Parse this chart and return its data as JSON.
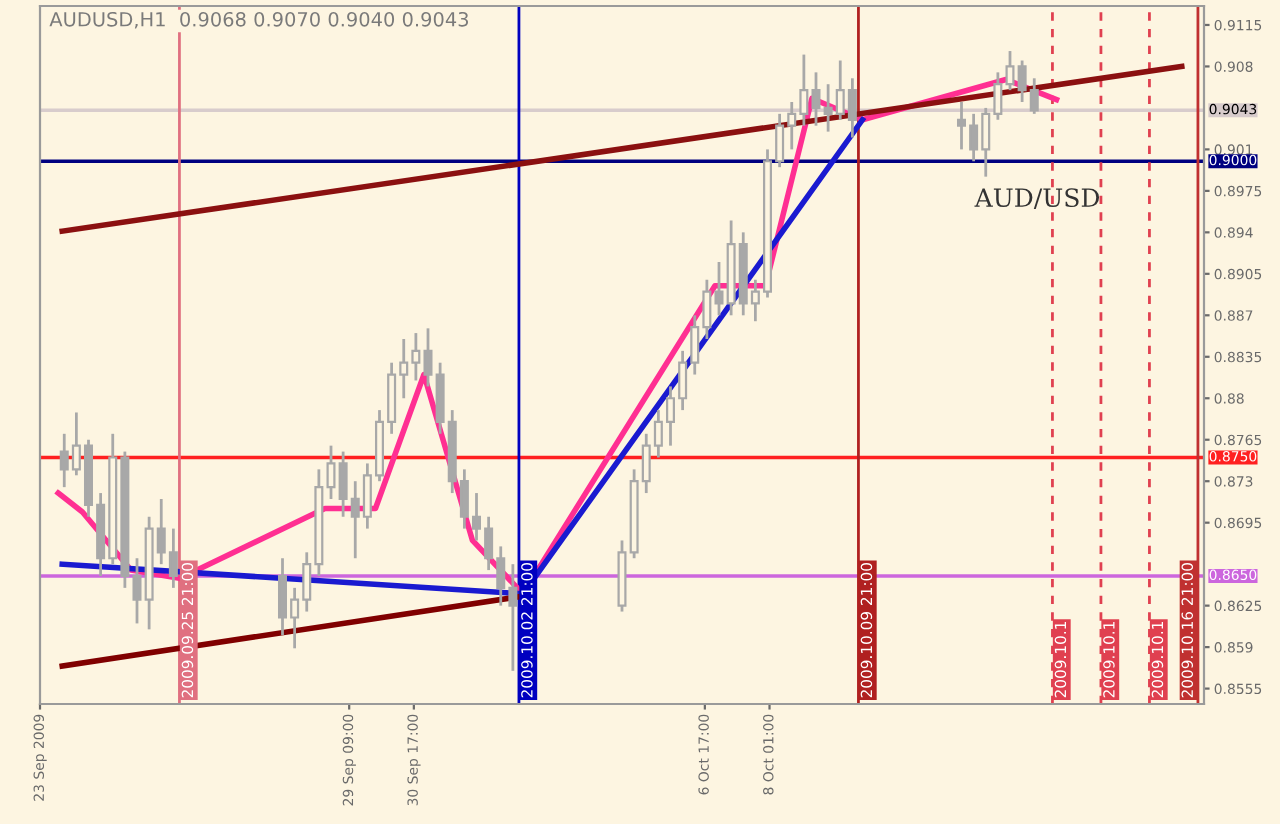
{
  "chart_data": {
    "type": "candlestick",
    "title": "AUDUSD,H1  0.9068 0.9070 0.9040 0.9043",
    "x": [
      "2009-09-23T12:00",
      "2009-09-23T18:00",
      "2009-09-24T00:00",
      "2009-09-24T06:00",
      "2009-09-24T12:00",
      "2009-09-24T18:00",
      "2009-09-25T00:00",
      "2009-09-25T06:00",
      "2009-09-25T12:00",
      "2009-09-25T18:00",
      "2009-09-28T00:00",
      "2009-09-28T06:00",
      "2009-09-28T12:00",
      "2009-09-28T18:00",
      "2009-09-29T00:00",
      "2009-09-29T06:00",
      "2009-09-29T12:00",
      "2009-09-29T18:00",
      "2009-09-30T00:00",
      "2009-09-30T06:00",
      "2009-09-30T12:00",
      "2009-09-30T18:00",
      "2009-10-01T00:00",
      "2009-10-01T06:00",
      "2009-10-01T12:00",
      "2009-10-01T18:00",
      "2009-10-02T00:00",
      "2009-10-02T06:00",
      "2009-10-02T12:00",
      "2009-10-02T18:00",
      "2009-10-05T00:00",
      "2009-10-05T06:00",
      "2009-10-05T12:00",
      "2009-10-05T18:00",
      "2009-10-06T00:00",
      "2009-10-06T06:00",
      "2009-10-06T12:00",
      "2009-10-06T18:00",
      "2009-10-07T00:00",
      "2009-10-07T06:00",
      "2009-10-07T12:00",
      "2009-10-07T18:00",
      "2009-10-08T00:00",
      "2009-10-08T06:00",
      "2009-10-08T12:00",
      "2009-10-08T18:00",
      "2009-10-09T00:00",
      "2009-10-09T06:00",
      "2009-10-09T12:00",
      "2009-10-09T18:00",
      "2009-10-12T00:00",
      "2009-10-12T06:00",
      "2009-10-12T12:00",
      "2009-10-12T18:00",
      "2009-10-13T00:00",
      "2009-10-13T06:00",
      "2009-10-13T12:00"
    ],
    "ohlc": [
      [
        0.8755,
        0.877,
        0.8725,
        0.874
      ],
      [
        0.874,
        0.8788,
        0.8735,
        0.876
      ],
      [
        0.876,
        0.8765,
        0.87,
        0.871
      ],
      [
        0.871,
        0.872,
        0.865,
        0.8665
      ],
      [
        0.8665,
        0.877,
        0.866,
        0.875
      ],
      [
        0.875,
        0.8755,
        0.864,
        0.865
      ],
      [
        0.865,
        0.8665,
        0.861,
        0.863
      ],
      [
        0.863,
        0.87,
        0.8605,
        0.869
      ],
      [
        0.869,
        0.8715,
        0.866,
        0.867
      ],
      [
        0.867,
        0.869,
        0.864,
        0.865
      ],
      [
        0.865,
        0.8665,
        0.86,
        0.8615
      ],
      [
        0.8615,
        0.864,
        0.8589,
        0.863
      ],
      [
        0.863,
        0.867,
        0.862,
        0.866
      ],
      [
        0.866,
        0.874,
        0.865,
        0.8725
      ],
      [
        0.8725,
        0.876,
        0.8715,
        0.8745
      ],
      [
        0.8745,
        0.8755,
        0.87,
        0.8715
      ],
      [
        0.8715,
        0.873,
        0.8665,
        0.87
      ],
      [
        0.87,
        0.8745,
        0.869,
        0.8735
      ],
      [
        0.8735,
        0.879,
        0.873,
        0.878
      ],
      [
        0.878,
        0.883,
        0.877,
        0.882
      ],
      [
        0.882,
        0.885,
        0.88,
        0.883
      ],
      [
        0.883,
        0.8855,
        0.8815,
        0.884
      ],
      [
        0.884,
        0.8859,
        0.881,
        0.882
      ],
      [
        0.882,
        0.883,
        0.877,
        0.878
      ],
      [
        0.878,
        0.879,
        0.872,
        0.873
      ],
      [
        0.873,
        0.874,
        0.869,
        0.87
      ],
      [
        0.87,
        0.872,
        0.868,
        0.869
      ],
      [
        0.869,
        0.87,
        0.8655,
        0.8665
      ],
      [
        0.8665,
        0.8675,
        0.8625,
        0.864
      ],
      [
        0.864,
        0.866,
        0.857,
        0.8625
      ],
      [
        0.8625,
        0.868,
        0.862,
        0.867
      ],
      [
        0.867,
        0.874,
        0.8665,
        0.873
      ],
      [
        0.873,
        0.877,
        0.872,
        0.876
      ],
      [
        0.876,
        0.879,
        0.875,
        0.878
      ],
      [
        0.878,
        0.881,
        0.876,
        0.88
      ],
      [
        0.88,
        0.884,
        0.879,
        0.883
      ],
      [
        0.883,
        0.887,
        0.882,
        0.886
      ],
      [
        0.886,
        0.89,
        0.885,
        0.889
      ],
      [
        0.889,
        0.8915,
        0.887,
        0.888
      ],
      [
        0.888,
        0.895,
        0.887,
        0.893
      ],
      [
        0.893,
        0.894,
        0.887,
        0.888
      ],
      [
        0.888,
        0.89,
        0.8865,
        0.889
      ],
      [
        0.889,
        0.901,
        0.8885,
        0.9
      ],
      [
        0.9,
        0.904,
        0.8995,
        0.903
      ],
      [
        0.903,
        0.905,
        0.901,
        0.904
      ],
      [
        0.904,
        0.909,
        0.903,
        0.906
      ],
      [
        0.906,
        0.9075,
        0.903,
        0.9045
      ],
      [
        0.9045,
        0.9065,
        0.9025,
        0.904
      ],
      [
        0.904,
        0.9085,
        0.9035,
        0.906
      ],
      [
        0.906,
        0.907,
        0.902,
        0.9035
      ],
      [
        0.9035,
        0.905,
        0.901,
        0.903
      ],
      [
        0.903,
        0.904,
        0.9,
        0.901
      ],
      [
        0.901,
        0.9045,
        0.8987,
        0.904
      ],
      [
        0.904,
        0.9075,
        0.9035,
        0.9065
      ],
      [
        0.9065,
        0.9093,
        0.906,
        0.908
      ],
      [
        0.908,
        0.9085,
        0.905,
        0.906
      ],
      [
        0.906,
        0.907,
        0.904,
        0.9043
      ]
    ],
    "color": "#a8a8a8",
    "series": [
      {
        "type": "line",
        "color": "#ff2f92",
        "x": [
          "2009-09-23T09:00",
          "2009-09-23T21:00",
          "2009-09-24T21:00",
          "2009-09-25T21:00",
          "2009-09-28T21:00",
          "2009-09-29T22:00",
          "2009-09-30T22:00",
          "2009-10-01T22:00",
          "2009-10-02T23:00",
          "2009-10-06T22:00",
          "2009-10-07T23:00",
          "2009-10-08T22:00",
          "2009-10-09T23:00",
          "2009-10-12T22:00",
          "2009-10-13T23:00"
        ],
        "values": [
          0.872,
          0.8704,
          0.8655,
          0.8648,
          0.8707,
          0.8707,
          0.882,
          0.868,
          0.8635,
          0.8895,
          0.8895,
          0.9053,
          0.9035,
          0.9069,
          0.9052
        ]
      },
      {
        "type": "line",
        "color": "#1a1ad0",
        "x": [
          "2009-09-23T11:00",
          "2009-10-02T23:00"
        ],
        "values": [
          0.866,
          0.8635
        ]
      },
      {
        "type": "line",
        "color": "#1a1ad0",
        "x": [
          "2009-10-02T23:00",
          "2009-10-09T23:00"
        ],
        "values": [
          0.8635,
          0.9035
        ]
      },
      {
        "type": "line",
        "color": "#800000",
        "x": [
          "2009-09-23T11:00",
          "2009-10-02T23:00"
        ],
        "values": [
          0.8574,
          0.8633
        ]
      },
      {
        "type": "line",
        "color": "#8b1010",
        "x": [
          "2009-09-23T11:00",
          "2009-10-16T13:00"
        ],
        "values": [
          0.8941,
          0.908
        ]
      }
    ],
    "xlim": [
      "2009-09-23",
      "2009-10-17"
    ],
    "ylim": [
      0.8542,
      0.9131
    ],
    "xticks": [
      {
        "value": "2009-09-23",
        "label": "23 Sep 2009"
      },
      {
        "value": "2009-09-29T09:00",
        "label": "29 Sep 09:00"
      },
      {
        "value": "2009-09-30T17:00",
        "label": "30 Sep 17:00"
      },
      {
        "value": "2009-10-06T17:00",
        "label": "6 Oct 17:00"
      },
      {
        "value": "2009-10-08T01:00",
        "label": "8 Oct 01:00"
      }
    ],
    "yticks": [
      0.9115,
      0.908,
      0.901,
      0.8975,
      0.894,
      0.8905,
      0.887,
      0.8835,
      0.88,
      0.8765,
      0.873,
      0.8695,
      0.8625,
      0.859,
      0.8555
    ],
    "ref_lines": [
      {
        "axis": "y",
        "value": 0.9043,
        "label": "0.9043",
        "color": "#d8cccc",
        "line_style": "solid"
      },
      {
        "axis": "y",
        "value": 0.9,
        "label": "0.9000",
        "color": "#000080",
        "line_style": "solid"
      },
      {
        "axis": "y",
        "value": 0.875,
        "label": "0.8750",
        "color": "#ff2020",
        "line_style": "solid"
      },
      {
        "axis": "y",
        "value": 0.865,
        "label": "0.8650",
        "color": "#cc66dd",
        "line_style": "solid"
      },
      {
        "axis": "x",
        "value": "2009-09-25T21:00",
        "label": "2009.09.25 21:00",
        "color": "#e07080",
        "line_style": "solid"
      },
      {
        "axis": "x",
        "value": "2009-10-02T21:00",
        "label": "2009.10.02 21:00",
        "color": "#0000c0",
        "line_style": "solid"
      },
      {
        "axis": "x",
        "value": "2009-10-09T21:00",
        "label": "2009.10.09 21:00",
        "color": "#b02020",
        "line_style": "solid"
      },
      {
        "axis": "x",
        "value": "2009-10-13T21:00",
        "label": "2009.10.1",
        "color": "#e04050",
        "line_style": "dashed"
      },
      {
        "axis": "x",
        "value": "2009-10-14T21:00",
        "label": "2009.10.1",
        "color": "#e04050",
        "line_style": "dashed"
      },
      {
        "axis": "x",
        "value": "2009-10-15T21:00",
        "label": "2009.10.1",
        "color": "#e04050",
        "line_style": "dashed"
      },
      {
        "axis": "x",
        "value": "2009-10-16T21:00",
        "label": "2009.10.16 21:00",
        "color": "#c03030",
        "line_style": "solid"
      }
    ],
    "annotations": [
      {
        "text": "AUD/USD",
        "x": "2009-10-12T12:00",
        "y": 0.8987
      }
    ],
    "grid": false,
    "legend": false
  }
}
